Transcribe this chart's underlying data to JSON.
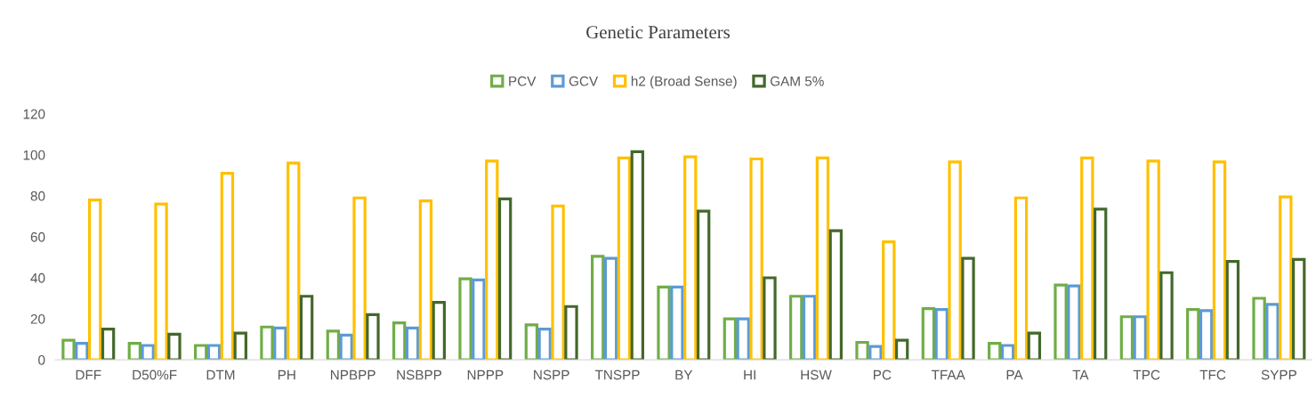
{
  "chart_data": {
    "type": "bar",
    "title": "Genetic Parameters",
    "categories": [
      "DFF",
      "D50%F",
      "DTM",
      "PH",
      "NPBPP",
      "NSBPP",
      "NPPP",
      "NSPP",
      "TNSPP",
      "BY",
      "HI",
      "HSW",
      "PC",
      "TFAA",
      "PA",
      "TA",
      "TPC",
      "TFC",
      "SYPP"
    ],
    "series": [
      {
        "name": "PCV",
        "color": "#70ad47",
        "values": [
          9.5,
          8,
          7,
          16,
          14,
          18,
          39.5,
          17,
          50.5,
          35.5,
          20,
          31,
          8.5,
          25,
          8,
          36.5,
          21,
          24.5,
          30
        ]
      },
      {
        "name": "GCV",
        "color": "#5b9bd5",
        "values": [
          8,
          7,
          7,
          15.5,
          12,
          15.5,
          39,
          15,
          49.5,
          35.5,
          20,
          31,
          6.5,
          24.5,
          7,
          36,
          21,
          24,
          27
        ]
      },
      {
        "name": "h2 (Broad Sense)",
        "color": "#ffc000",
        "values": [
          78,
          76,
          91,
          96,
          79,
          77.5,
          97,
          75,
          98.5,
          99,
          98,
          98.5,
          57.5,
          96.5,
          79,
          98.5,
          97,
          96.5,
          79.5
        ]
      },
      {
        "name": "GAM 5%",
        "color": "#43682b",
        "values": [
          15,
          12.5,
          13,
          31,
          22,
          28,
          78.5,
          26,
          101.5,
          72.5,
          40,
          63,
          9.5,
          49.5,
          13,
          73.5,
          42.5,
          48,
          49
        ]
      }
    ],
    "ylim": [
      0,
      120
    ],
    "yticks": [
      0,
      20,
      40,
      60,
      80,
      100,
      120
    ],
    "grid": false,
    "legend": "top"
  }
}
